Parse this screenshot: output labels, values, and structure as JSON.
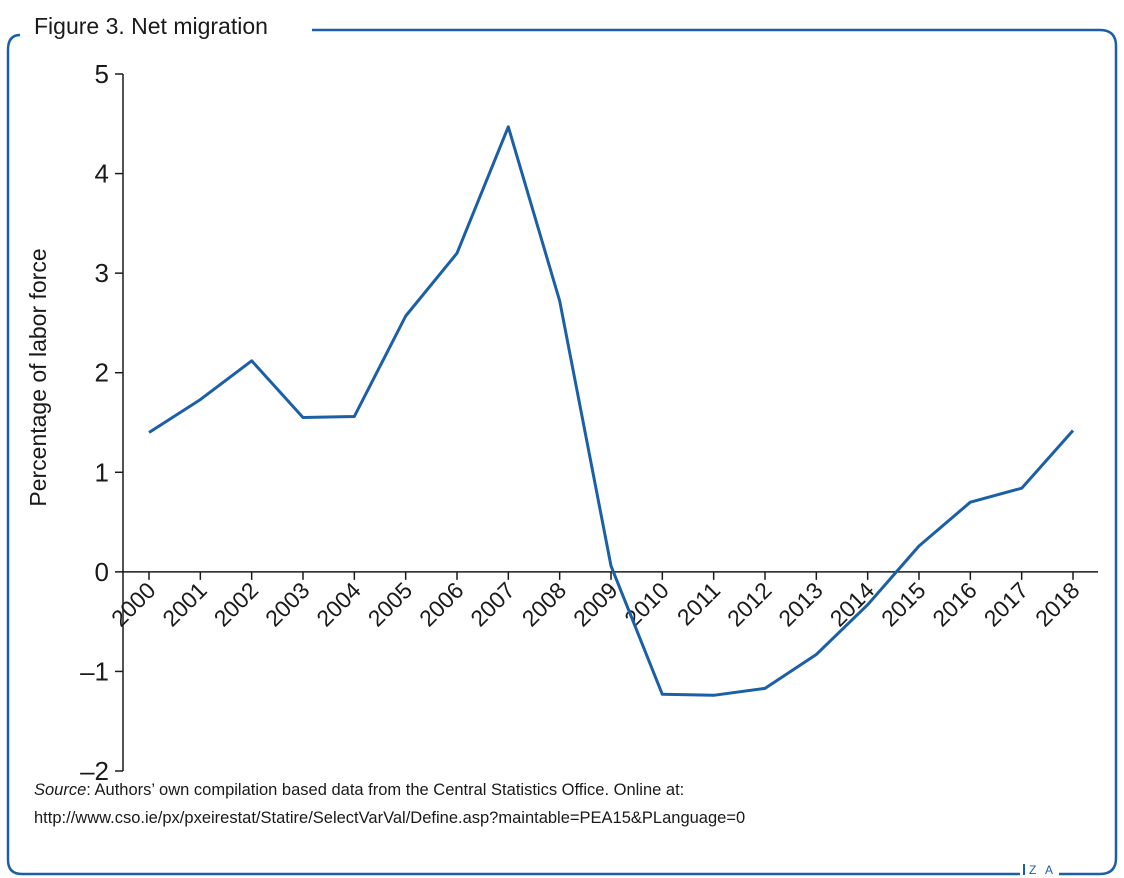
{
  "figure": {
    "title": "Figure 3. Net migration",
    "source_label": "Source",
    "source_text": ": Authors’ own compilation based data from the Central Statistics Office. Online at: http://www.cso.ie/px/pxeirestat/Statire/SelectVarVal/Define.asp?maintable=PEA15&PLanguage=0",
    "logo_text": "Z A",
    "frame_color": "#1b5fa6"
  },
  "chart_data": {
    "type": "line",
    "title": "Figure 3. Net migration",
    "xlabel": "",
    "ylabel": "Percentage of labor force",
    "ylim": [
      -2,
      5
    ],
    "yticks": [
      -2,
      -1,
      0,
      1,
      2,
      3,
      4,
      5
    ],
    "ytick_labels": [
      "–2",
      "–1",
      "0",
      "1",
      "2",
      "3",
      "4",
      "5"
    ],
    "categories": [
      "2000",
      "2001",
      "2002",
      "2003",
      "2004",
      "2005",
      "2006",
      "2007",
      "2008",
      "2009",
      "2010",
      "2011",
      "2012",
      "2013",
      "2014",
      "2015",
      "2016",
      "2017",
      "2018"
    ],
    "series": [
      {
        "color": "#1b5fa6",
        "values": [
          1.4,
          1.73,
          2.12,
          1.55,
          1.56,
          2.57,
          3.2,
          4.47,
          2.72,
          0.06,
          -1.23,
          -1.24,
          -1.17,
          -0.83,
          -0.33,
          0.26,
          0.7,
          0.84,
          1.42
        ]
      }
    ],
    "grid": false,
    "legend": "none"
  }
}
